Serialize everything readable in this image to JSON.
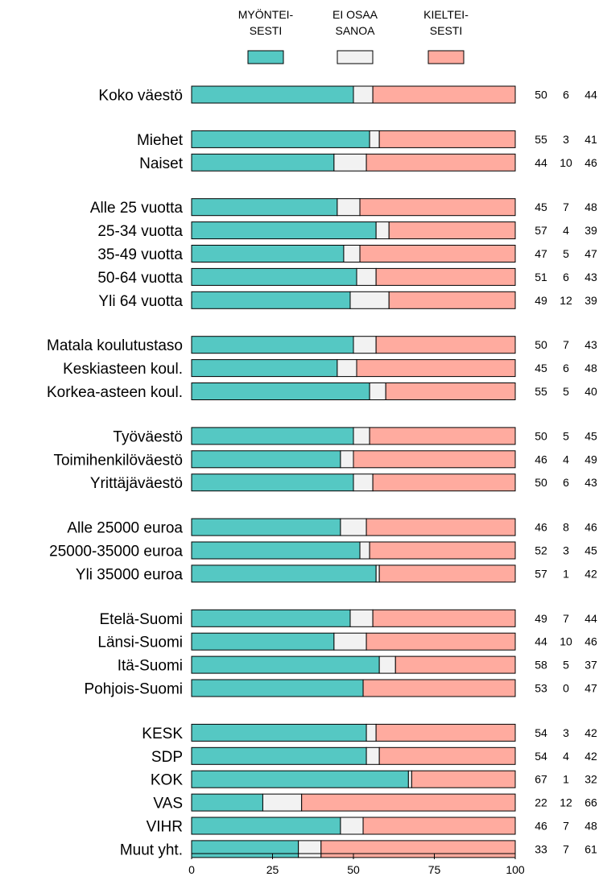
{
  "chart_data": {
    "type": "bar",
    "orientation": "horizontal",
    "stacked": true,
    "xlim": [
      0,
      100
    ],
    "xticks": [
      "0",
      "25",
      "50",
      "75",
      "100"
    ],
    "grid": false,
    "legend_position": "top",
    "series": [
      {
        "name": "MYÖNTEI-\nSESTI",
        "name_lines": [
          "MYÖNTEI-",
          "SESTI"
        ],
        "color": "#55C8C3"
      },
      {
        "name": "EI OSAA\nSANOA",
        "name_lines": [
          "EI OSAA",
          "SANOA"
        ],
        "color": "#F2F2F2"
      },
      {
        "name": "KIELTEI-\nSESTI",
        "name_lines": [
          "KIELTEI-",
          "SESTI"
        ],
        "color": "#FFAB9F"
      }
    ],
    "groups": [
      [
        {
          "label": "Koko väestö",
          "values": [
            50,
            6,
            44
          ]
        }
      ],
      [
        {
          "label": "Miehet",
          "values": [
            55,
            3,
            41
          ]
        },
        {
          "label": "Naiset",
          "values": [
            44,
            10,
            46
          ]
        }
      ],
      [
        {
          "label": "Alle 25 vuotta",
          "values": [
            45,
            7,
            48
          ]
        },
        {
          "label": "25-34 vuotta",
          "values": [
            57,
            4,
            39
          ]
        },
        {
          "label": "35-49 vuotta",
          "values": [
            47,
            5,
            47
          ]
        },
        {
          "label": "50-64 vuotta",
          "values": [
            51,
            6,
            43
          ]
        },
        {
          "label": "Yli 64 vuotta",
          "values": [
            49,
            12,
            39
          ]
        }
      ],
      [
        {
          "label": "Matala koulutustaso",
          "values": [
            50,
            7,
            43
          ]
        },
        {
          "label": "Keskiasteen koul.",
          "values": [
            45,
            6,
            48
          ]
        },
        {
          "label": "Korkea-asteen koul.",
          "values": [
            55,
            5,
            40
          ]
        }
      ],
      [
        {
          "label": "Työväestö",
          "values": [
            50,
            5,
            45
          ]
        },
        {
          "label": "Toimihenkilöväestö",
          "values": [
            46,
            4,
            49
          ]
        },
        {
          "label": "Yrittäjäväestö",
          "values": [
            50,
            6,
            43
          ]
        }
      ],
      [
        {
          "label": "Alle 25000 euroa",
          "values": [
            46,
            8,
            46
          ]
        },
        {
          "label": "25000-35000 euroa",
          "values": [
            52,
            3,
            45
          ]
        },
        {
          "label": "Yli 35000 euroa",
          "values": [
            57,
            1,
            42
          ]
        }
      ],
      [
        {
          "label": "Etelä-Suomi",
          "values": [
            49,
            7,
            44
          ]
        },
        {
          "label": "Länsi-Suomi",
          "values": [
            44,
            10,
            46
          ]
        },
        {
          "label": "Itä-Suomi",
          "values": [
            58,
            5,
            37
          ]
        },
        {
          "label": "Pohjois-Suomi",
          "values": [
            53,
            0,
            47
          ]
        }
      ],
      [
        {
          "label": "KESK",
          "values": [
            54,
            3,
            42
          ]
        },
        {
          "label": "SDP",
          "values": [
            54,
            4,
            42
          ]
        },
        {
          "label": "KOK",
          "values": [
            67,
            1,
            32
          ]
        },
        {
          "label": "VAS",
          "values": [
            22,
            12,
            66
          ]
        },
        {
          "label": "VIHR",
          "values": [
            46,
            7,
            48
          ]
        },
        {
          "label": "Muut yht.",
          "values": [
            33,
            7,
            61
          ]
        }
      ]
    ]
  }
}
